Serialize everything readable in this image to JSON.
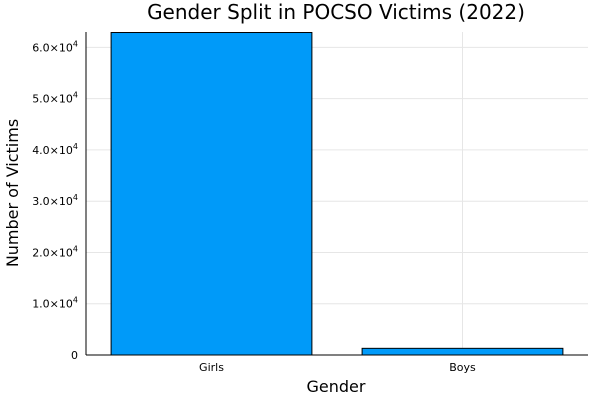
{
  "chart_data": {
    "type": "bar",
    "title": "Gender Split in POCSO Victims (2022)",
    "xlabel": "Gender",
    "ylabel": "Number of Victims",
    "categories": [
      "Girls",
      "Boys"
    ],
    "values": [
      62900,
      1300
    ],
    "ylim": [
      0,
      63000
    ],
    "yticks": [
      0,
      10000,
      20000,
      30000,
      40000,
      50000,
      60000
    ],
    "ytick_labels": [
      {
        "mantissa": "0",
        "exp": ""
      },
      {
        "mantissa": "1.0×10",
        "exp": "4"
      },
      {
        "mantissa": "2.0×10",
        "exp": "4"
      },
      {
        "mantissa": "3.0×10",
        "exp": "4"
      },
      {
        "mantissa": "4.0×10",
        "exp": "4"
      },
      {
        "mantissa": "5.0×10",
        "exp": "4"
      },
      {
        "mantissa": "6.0×10",
        "exp": "4"
      }
    ],
    "grid": true,
    "legend": "none",
    "bar_color": "#009af9"
  }
}
